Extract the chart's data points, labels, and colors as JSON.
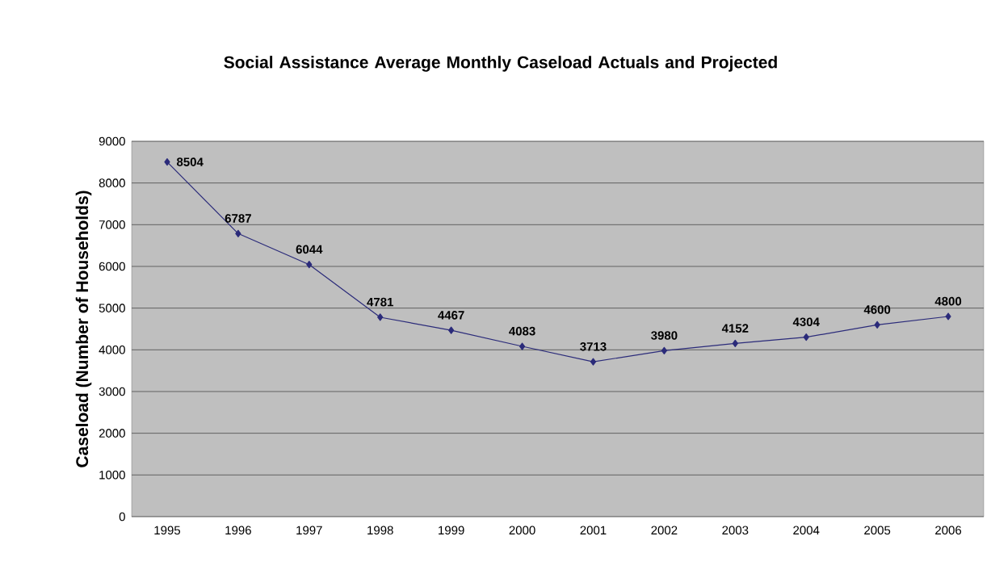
{
  "chart_data": {
    "type": "line",
    "title": "Social Assistance Average Monthly Caseload Actuals and Projected",
    "ylabel": "Caseload (Number of Households)",
    "categories": [
      "1995",
      "1996",
      "1997",
      "1998",
      "1999",
      "2000",
      "2001",
      "2002",
      "2003",
      "2004",
      "2005",
      "2006"
    ],
    "values": [
      8504,
      6787,
      6044,
      4781,
      4467,
      4083,
      3713,
      3980,
      4152,
      4304,
      4600,
      4800
    ],
    "color": "#2b2b7a",
    "marker": "diamond",
    "line_style": "solid",
    "data_labels": true,
    "grid": "y",
    "ylim": [
      0,
      9000
    ],
    "yticks": [
      0,
      1000,
      2000,
      3000,
      4000,
      5000,
      6000,
      7000,
      8000,
      9000
    ]
  }
}
